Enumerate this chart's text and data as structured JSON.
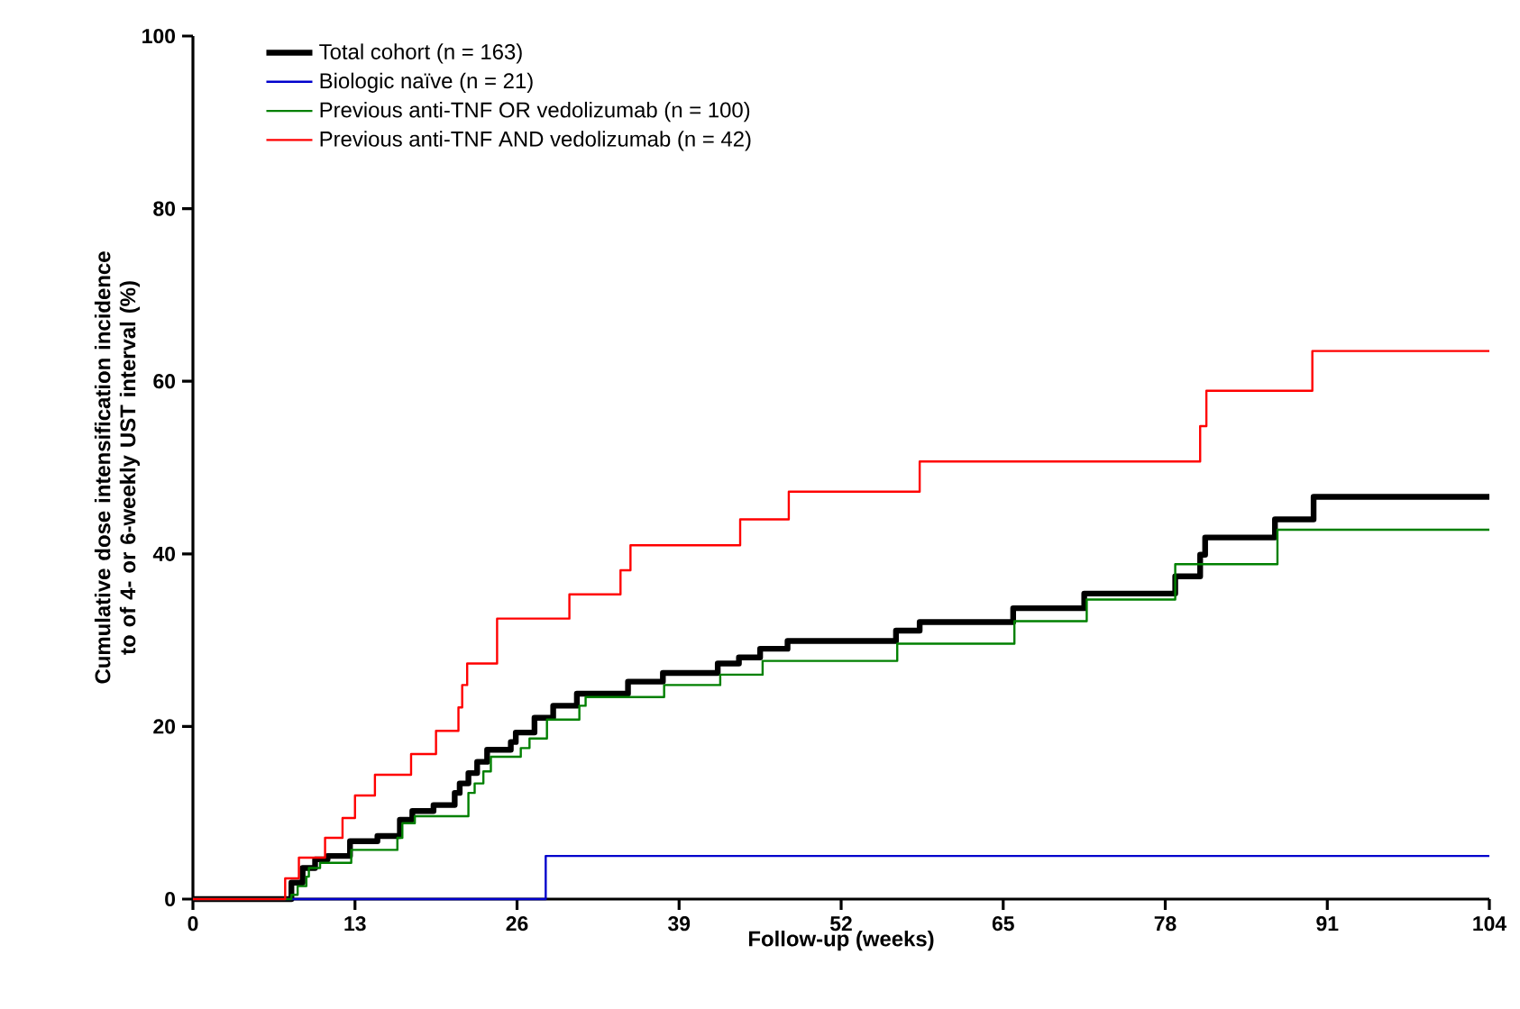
{
  "chart_data": {
    "type": "step",
    "xlabel": "Follow-up (weeks)",
    "ylabel": "Cumulative dose intensification incidence to of 4- or 6-weekly UST interval (%)",
    "xlim": [
      0,
      104
    ],
    "ylim": [
      0,
      100
    ],
    "xticks": [
      0,
      13,
      26,
      39,
      52,
      65,
      78,
      91,
      104
    ],
    "yticks": [
      0,
      20,
      40,
      60,
      80,
      100
    ],
    "grid": false,
    "legend": "top left",
    "line_style": "solid",
    "series": [
      {
        "name": "Total cohort (n = 163)",
        "color": "#000000",
        "x": [
          0,
          7.1,
          7.9,
          8.8,
          9.8,
          10.8,
          12.6,
          14.8,
          16.6,
          17.6,
          19.3,
          21.0,
          21.4,
          22.1,
          22.8,
          23.6,
          25.5,
          25.9,
          27.4,
          28.9,
          30.8,
          34.9,
          37.7,
          42.1,
          43.8,
          45.5,
          47.7,
          56.4,
          58.3,
          65.8,
          71.5,
          78.8,
          80.8,
          81.2,
          86.8,
          89.9,
          104
        ],
        "values": [
          0,
          0,
          1.9,
          3.6,
          4.6,
          5.0,
          6.7,
          7.3,
          9.2,
          10.2,
          10.9,
          12.3,
          13.4,
          14.6,
          15.9,
          17.3,
          18.2,
          19.3,
          21.0,
          22.4,
          23.8,
          25.2,
          26.2,
          27.3,
          28.0,
          29.0,
          29.9,
          31.1,
          32.1,
          33.7,
          35.4,
          37.4,
          39.9,
          41.9,
          44.0,
          46.6,
          46.6
        ]
      },
      {
        "name": "Biologic naïve (n = 21)",
        "color": "#0000cc",
        "x": [
          0,
          28.3,
          104
        ],
        "values": [
          0,
          5.0,
          5.0
        ]
      },
      {
        "name": "Previous anti-TNF OR vedolizumab (n = 100)",
        "color": "#008000",
        "x": [
          0,
          7.9,
          8.4,
          9.1,
          9.3,
          10.2,
          12.7,
          16.4,
          16.8,
          17.8,
          22.1,
          22.6,
          23.3,
          23.9,
          26.3,
          27.0,
          28.4,
          31.0,
          31.5,
          37.8,
          42.3,
          45.7,
          56.5,
          65.9,
          71.7,
          78.8,
          87.0,
          104
        ],
        "values": [
          0,
          0.5,
          1.5,
          2.6,
          3.6,
          4.2,
          5.7,
          7.1,
          8.8,
          9.6,
          12.3,
          13.4,
          14.8,
          16.5,
          17.5,
          18.6,
          20.8,
          22.4,
          23.4,
          24.8,
          26.0,
          27.6,
          29.6,
          32.2,
          34.7,
          38.8,
          42.8,
          42.8
        ]
      },
      {
        "name": "Previous anti-TNF AND vedolizumab (n = 42)",
        "color": "#ff0000",
        "x": [
          0,
          7.4,
          8.5,
          10.6,
          12.0,
          13.0,
          14.6,
          17.5,
          19.5,
          21.3,
          21.6,
          22.0,
          24.4,
          30.2,
          34.3,
          35.1,
          43.9,
          47.8,
          58.3,
          80.8,
          81.3,
          89.8,
          104
        ],
        "values": [
          0,
          2.4,
          4.8,
          7.1,
          9.4,
          12.0,
          14.4,
          16.8,
          19.5,
          22.2,
          24.8,
          27.3,
          32.5,
          35.3,
          38.1,
          41.0,
          44.0,
          47.2,
          50.7,
          54.8,
          58.9,
          63.5,
          63.5
        ]
      }
    ]
  }
}
